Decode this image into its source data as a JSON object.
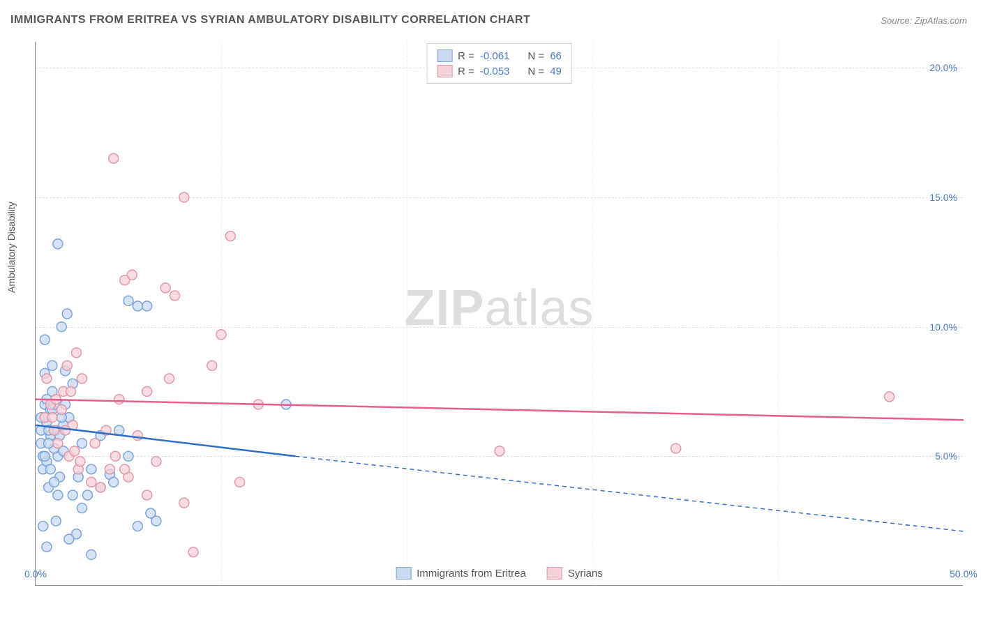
{
  "title": "IMMIGRANTS FROM ERITREA VS SYRIAN AMBULATORY DISABILITY CORRELATION CHART",
  "source": "Source: ZipAtlas.com",
  "ylabel": "Ambulatory Disability",
  "watermark_zip": "ZIP",
  "watermark_atlas": "atlas",
  "chart": {
    "type": "scatter",
    "xlim": [
      0,
      50
    ],
    "ylim": [
      0,
      21
    ],
    "yticks": [
      5,
      10,
      15,
      20
    ],
    "ytick_labels": [
      "5.0%",
      "10.0%",
      "15.0%",
      "20.0%"
    ],
    "xticks": [
      0,
      50
    ],
    "xtick_labels": [
      "0.0%",
      "50.0%"
    ],
    "xgrid": [
      10,
      20,
      30,
      40
    ],
    "grid_color": "#dddddd",
    "background_color": "#ffffff",
    "marker_radius": 7,
    "marker_stroke_width": 1.5,
    "series": [
      {
        "name": "Immigrants from Eritrea",
        "fill": "#c8d9f0",
        "stroke": "#7da5dd",
        "line_color": "#2f6fc4",
        "R": "-0.061",
        "N": "66",
        "regression": {
          "x1": 0,
          "y1": 6.2,
          "x2": 14,
          "y2": 5.0,
          "x3": 50,
          "y3": 2.1
        },
        "points": [
          [
            0.3,
            6.5
          ],
          [
            0.5,
            7.0
          ],
          [
            0.8,
            5.8
          ],
          [
            1.0,
            6.0
          ],
          [
            0.5,
            8.2
          ],
          [
            0.3,
            5.5
          ],
          [
            0.6,
            6.3
          ],
          [
            0.9,
            7.5
          ],
          [
            1.2,
            5.0
          ],
          [
            1.5,
            6.2
          ],
          [
            0.4,
            4.5
          ],
          [
            0.7,
            3.8
          ],
          [
            1.1,
            2.5
          ],
          [
            1.3,
            4.2
          ],
          [
            0.8,
            6.8
          ],
          [
            1.0,
            5.3
          ],
          [
            1.6,
            8.3
          ],
          [
            2.0,
            7.8
          ],
          [
            2.3,
            4.2
          ],
          [
            2.5,
            5.5
          ],
          [
            2.8,
            3.5
          ],
          [
            1.8,
            6.5
          ],
          [
            0.6,
            7.2
          ],
          [
            0.9,
            8.5
          ],
          [
            1.4,
            10.0
          ],
          [
            1.2,
            13.2
          ],
          [
            1.7,
            10.5
          ],
          [
            0.5,
            9.5
          ],
          [
            5.0,
            11.0
          ],
          [
            6.0,
            10.8
          ],
          [
            3.5,
            5.8
          ],
          [
            4.0,
            4.3
          ],
          [
            4.5,
            6.0
          ],
          [
            5.5,
            2.3
          ],
          [
            6.5,
            2.5
          ],
          [
            2.2,
            2.0
          ],
          [
            0.4,
            2.3
          ],
          [
            0.6,
            1.5
          ],
          [
            1.8,
            1.8
          ],
          [
            3.0,
            1.2
          ],
          [
            0.3,
            6.0
          ],
          [
            0.5,
            6.5
          ],
          [
            0.7,
            5.5
          ],
          [
            0.9,
            6.8
          ],
          [
            1.1,
            6.0
          ],
          [
            1.3,
            5.8
          ],
          [
            1.5,
            5.2
          ],
          [
            0.4,
            5.0
          ],
          [
            0.6,
            4.8
          ],
          [
            0.8,
            4.5
          ],
          [
            1.0,
            4.0
          ],
          [
            1.2,
            3.5
          ],
          [
            1.4,
            6.5
          ],
          [
            1.6,
            7.0
          ],
          [
            2.0,
            3.5
          ],
          [
            2.5,
            3.0
          ],
          [
            3.0,
            4.5
          ],
          [
            3.5,
            3.8
          ],
          [
            4.2,
            4.0
          ],
          [
            5.0,
            5.0
          ],
          [
            6.2,
            2.8
          ],
          [
            0.5,
            5.0
          ],
          [
            0.7,
            6.0
          ],
          [
            1.0,
            7.0
          ],
          [
            5.5,
            10.8
          ],
          [
            13.5,
            7.0
          ]
        ]
      },
      {
        "name": "Syrians",
        "fill": "#f5d0d8",
        "stroke": "#e19aaa",
        "line_color": "#e85d8a",
        "R": "-0.053",
        "N": "49",
        "regression": {
          "x1": 0,
          "y1": 7.2,
          "x2": 50,
          "y2": 6.4
        },
        "points": [
          [
            0.5,
            6.5
          ],
          [
            0.8,
            7.0
          ],
          [
            1.0,
            6.0
          ],
          [
            1.2,
            5.5
          ],
          [
            1.5,
            7.5
          ],
          [
            1.8,
            5.0
          ],
          [
            2.0,
            6.2
          ],
          [
            2.3,
            4.5
          ],
          [
            2.5,
            8.0
          ],
          [
            3.0,
            4.0
          ],
          [
            3.5,
            3.8
          ],
          [
            4.0,
            4.5
          ],
          [
            4.5,
            7.2
          ],
          [
            5.0,
            4.2
          ],
          [
            5.5,
            5.8
          ],
          [
            6.0,
            3.5
          ],
          [
            6.5,
            4.8
          ],
          [
            7.0,
            11.5
          ],
          [
            7.5,
            11.2
          ],
          [
            8.0,
            15.0
          ],
          [
            4.2,
            16.5
          ],
          [
            9.5,
            8.5
          ],
          [
            10.0,
            9.7
          ],
          [
            10.5,
            13.5
          ],
          [
            11.0,
            4.0
          ],
          [
            12.0,
            7.0
          ],
          [
            8.5,
            1.3
          ],
          [
            5.2,
            12.0
          ],
          [
            4.8,
            11.8
          ],
          [
            2.2,
            9.0
          ],
          [
            1.7,
            8.5
          ],
          [
            0.6,
            8.0
          ],
          [
            0.9,
            6.5
          ],
          [
            1.1,
            7.2
          ],
          [
            1.4,
            6.8
          ],
          [
            1.6,
            6.0
          ],
          [
            1.9,
            7.5
          ],
          [
            2.1,
            5.2
          ],
          [
            2.4,
            4.8
          ],
          [
            3.2,
            5.5
          ],
          [
            3.8,
            6.0
          ],
          [
            4.3,
            5.0
          ],
          [
            4.8,
            4.5
          ],
          [
            25.0,
            5.2
          ],
          [
            34.5,
            5.3
          ],
          [
            46.0,
            7.3
          ],
          [
            6.0,
            7.5
          ],
          [
            7.2,
            8.0
          ],
          [
            8.0,
            3.2
          ]
        ]
      }
    ]
  },
  "legend_top": {
    "R_label": "R =",
    "N_label": "N ="
  },
  "legend_bottom": {
    "s1": "Immigrants from Eritrea",
    "s2": "Syrians"
  }
}
